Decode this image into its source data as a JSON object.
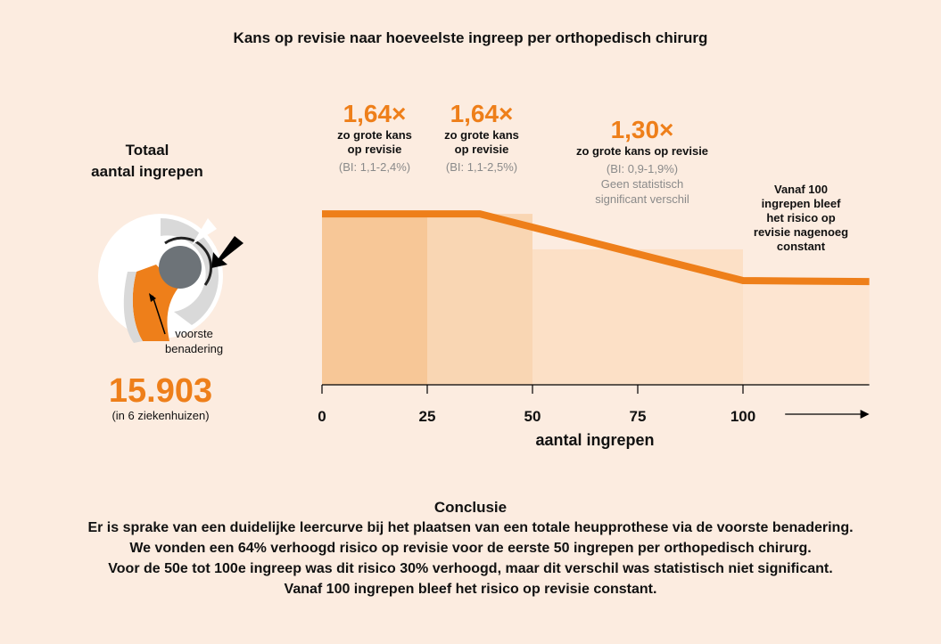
{
  "title": "Kans op revisie naar hoeveelste ingreep per orthopedisch chirurg",
  "total": {
    "label_line1": "Totaal",
    "label_line2": "aantal ingrepen",
    "value": "15.903",
    "sub": "(in 6 ziekenhuizen)",
    "hip_label_line1": "voorste",
    "hip_label_line2": "benadering"
  },
  "annotations": [
    {
      "mult": "1,64×",
      "line1": "zo grote kans",
      "line2": "op revisie",
      "ci": "(BI: 1,1-2,4%)"
    },
    {
      "mult": "1,64×",
      "line1": "zo grote kans",
      "line2": "op revisie",
      "ci": "(BI: 1,1-2,5%)"
    },
    {
      "mult": "1,30×",
      "line1": "zo grote kans op revisie",
      "ci": "(BI: 0,9-1,9%)",
      "note1": "Geen statistisch",
      "note2": "significant verschil"
    }
  ],
  "constant_note": [
    "Vanaf 100",
    "ingrepen bleef",
    "het risico op",
    "revisie nagenoeg",
    "constant"
  ],
  "chart_data": {
    "type": "area",
    "title": "Kans op revisie naar hoeveelste ingreep per orthopedisch chirurg",
    "xlabel": "aantal ingrepen",
    "ylabel": "",
    "xlim": [
      0,
      130
    ],
    "ylim": [
      0,
      1.85
    ],
    "x_ticks": [
      0,
      25,
      50,
      75,
      100
    ],
    "x_tick_labels": [
      "0",
      "25",
      "50",
      "75",
      "100"
    ],
    "arrow_from": 110,
    "arrow_to": 130,
    "bars": [
      {
        "x0": 0,
        "x1": 25,
        "value": 1.64,
        "label": "0-25"
      },
      {
        "x0": 25,
        "x1": 50,
        "value": 1.64,
        "label": "25-50"
      },
      {
        "x0": 50,
        "x1": 100,
        "value": 1.3,
        "label": "50-100"
      },
      {
        "x0": 100,
        "x1": 130,
        "value": 1.0,
        "label": "100+"
      }
    ],
    "line": {
      "x": [
        0,
        37.5,
        100,
        130
      ],
      "y": [
        1.64,
        1.64,
        1.0,
        0.99
      ]
    },
    "colors": {
      "line": "#ee7f1a",
      "bar1": "#f7c797",
      "bar2": "#f9d6b3",
      "bar3": "#fce0c6",
      "bar4": "#fde5d1"
    }
  },
  "conclusion": {
    "heading": "Conclusie",
    "lines": [
      "Er is sprake van een duidelijke leercurve bij het plaatsen van een totale heupprothese via de voorste benadering.",
      "We vonden een 64% verhoogd risico op revisie voor de eerste 50 ingrepen per orthopedisch chirurg.",
      "Voor de 50e tot 100e ingreep was dit risico 30% verhoogd, maar dit verschil was statistisch niet significant.",
      "Vanaf 100 ingrepen bleef het risico op revisie constant."
    ]
  }
}
